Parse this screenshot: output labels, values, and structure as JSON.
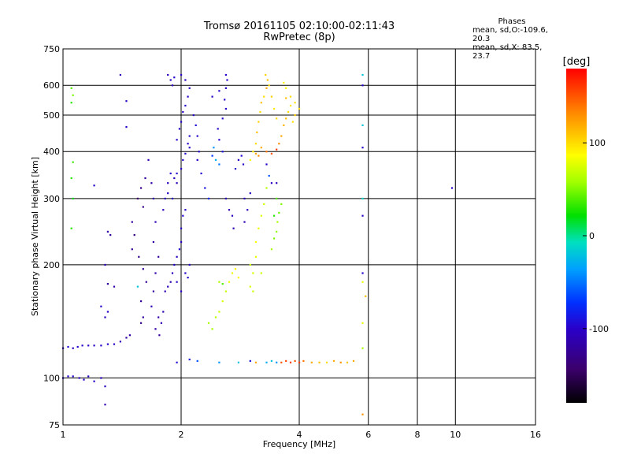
{
  "header": {
    "title_line1": "Tromsø 20161105 02:10:00-02:11:43",
    "title_line2": "RwPretec (8p)"
  },
  "stats": {
    "heading": "Phases",
    "line1": "mean, sd,O:-109.6, 20.3",
    "line2": "mean, sd,X:  83.5, 23.7"
  },
  "colorbar": {
    "unit_label": "[deg]",
    "ticks": [
      "100",
      "0",
      "-100"
    ],
    "tick_values": [
      100,
      0,
      -100
    ],
    "range": [
      -180,
      180
    ]
  },
  "chart_data": {
    "type": "scatter",
    "xlabel": "Frequency [MHz]",
    "ylabel": "Stationary phase Virtual Height [km]",
    "xscale": "log",
    "yscale": "log",
    "xlim": [
      1,
      16
    ],
    "ylim": [
      75,
      750
    ],
    "xticks": [
      1,
      2,
      4,
      6,
      8,
      10,
      16
    ],
    "yticks": [
      75,
      100,
      200,
      300,
      400,
      500,
      600,
      750
    ],
    "grid": true,
    "color_by": "phase_deg",
    "points": [
      [
        1.0,
        120,
        -100
      ],
      [
        1.03,
        121,
        -95
      ],
      [
        1.06,
        120,
        -105
      ],
      [
        1.09,
        121,
        -100
      ],
      [
        1.12,
        122,
        -98
      ],
      [
        1.16,
        122,
        -100
      ],
      [
        1.2,
        122,
        -102
      ],
      [
        1.25,
        122,
        -100
      ],
      [
        1.3,
        123,
        -98
      ],
      [
        1.35,
        123,
        -100
      ],
      [
        1.4,
        125,
        -110
      ],
      [
        1.45,
        128,
        -115
      ],
      [
        1.48,
        130,
        -115
      ],
      [
        1.0,
        100,
        -100
      ],
      [
        1.03,
        101,
        -98
      ],
      [
        1.06,
        101,
        -100
      ],
      [
        1.1,
        100,
        -102
      ],
      [
        1.13,
        99,
        -100
      ],
      [
        1.16,
        101,
        -100
      ],
      [
        1.2,
        98,
        -100
      ],
      [
        1.25,
        100,
        -104
      ],
      [
        1.28,
        95,
        -105
      ],
      [
        1.28,
        85,
        -110
      ],
      [
        1.05,
        590,
        40
      ],
      [
        1.06,
        565,
        50
      ],
      [
        1.05,
        540,
        30
      ],
      [
        1.06,
        375,
        35
      ],
      [
        1.05,
        340,
        30
      ],
      [
        1.06,
        300,
        20
      ],
      [
        1.05,
        250,
        30
      ],
      [
        1.2,
        325,
        -100
      ],
      [
        1.3,
        245,
        -115
      ],
      [
        1.32,
        240,
        -120
      ],
      [
        1.28,
        200,
        -110
      ],
      [
        1.3,
        178,
        -120
      ],
      [
        1.35,
        175,
        -115
      ],
      [
        1.25,
        155,
        -100
      ],
      [
        1.28,
        145,
        -105
      ],
      [
        1.3,
        150,
        -100
      ],
      [
        1.4,
        640,
        -110
      ],
      [
        1.45,
        545,
        -100
      ],
      [
        1.45,
        465,
        -100
      ],
      [
        1.5,
        260,
        -120
      ],
      [
        1.52,
        240,
        -130
      ],
      [
        1.5,
        220,
        -125
      ],
      [
        1.55,
        300,
        -140
      ],
      [
        1.58,
        320,
        -130
      ],
      [
        1.6,
        285,
        -130
      ],
      [
        1.62,
        340,
        -120
      ],
      [
        1.56,
        210,
        -130
      ],
      [
        1.6,
        195,
        -125
      ],
      [
        1.63,
        180,
        -120
      ],
      [
        1.58,
        160,
        -125
      ],
      [
        1.55,
        175,
        -20
      ],
      [
        1.6,
        145,
        -120
      ],
      [
        1.58,
        140,
        -130
      ],
      [
        1.65,
        380,
        -110
      ],
      [
        1.68,
        330,
        -115
      ],
      [
        1.7,
        300,
        -110
      ],
      [
        1.72,
        260,
        -110
      ],
      [
        1.7,
        230,
        -115
      ],
      [
        1.75,
        210,
        -120
      ],
      [
        1.72,
        190,
        -115
      ],
      [
        1.7,
        170,
        -120
      ],
      [
        1.68,
        155,
        -110
      ],
      [
        1.75,
        145,
        -115
      ],
      [
        1.78,
        140,
        -110
      ],
      [
        1.8,
        150,
        -110
      ],
      [
        1.72,
        135,
        -115
      ],
      [
        1.76,
        130,
        -120
      ],
      [
        1.8,
        280,
        -105
      ],
      [
        1.82,
        300,
        -100
      ],
      [
        1.85,
        310,
        -100
      ],
      [
        1.85,
        330,
        -105
      ],
      [
        1.9,
        300,
        -100
      ],
      [
        1.92,
        340,
        -105
      ],
      [
        1.88,
        350,
        -100
      ],
      [
        1.95,
        350,
        -100
      ],
      [
        1.95,
        330,
        -105
      ],
      [
        2.0,
        360,
        -100
      ],
      [
        2.02,
        380,
        -100
      ],
      [
        2.05,
        395,
        -100
      ],
      [
        2.08,
        420,
        -100
      ],
      [
        2.1,
        440,
        -95
      ],
      [
        2.1,
        410,
        -100
      ],
      [
        1.82,
        170,
        -110
      ],
      [
        1.85,
        175,
        -105
      ],
      [
        1.88,
        180,
        -110
      ],
      [
        1.9,
        190,
        -105
      ],
      [
        1.92,
        200,
        -100
      ],
      [
        1.95,
        210,
        -105
      ],
      [
        1.98,
        220,
        -100
      ],
      [
        2.0,
        230,
        -105
      ],
      [
        2.0,
        250,
        -100
      ],
      [
        2.02,
        270,
        -100
      ],
      [
        2.05,
        280,
        -100
      ],
      [
        1.95,
        180,
        -100
      ],
      [
        2.0,
        170,
        -100
      ],
      [
        2.05,
        190,
        -100
      ],
      [
        2.1,
        200,
        -100
      ],
      [
        2.08,
        185,
        -100
      ],
      [
        1.85,
        640,
        -105
      ],
      [
        1.88,
        620,
        -100
      ],
      [
        1.9,
        600,
        -105
      ],
      [
        1.92,
        630,
        -100
      ],
      [
        2.0,
        640,
        -100
      ],
      [
        2.05,
        620,
        -105
      ],
      [
        1.95,
        430,
        -100
      ],
      [
        1.98,
        460,
        -100
      ],
      [
        2.0,
        480,
        -100
      ],
      [
        2.02,
        510,
        -105
      ],
      [
        2.05,
        530,
        -100
      ],
      [
        2.08,
        560,
        -100
      ],
      [
        2.1,
        590,
        -100
      ],
      [
        2.15,
        500,
        -100
      ],
      [
        2.18,
        470,
        -95
      ],
      [
        2.2,
        440,
        -100
      ],
      [
        2.22,
        400,
        -100
      ],
      [
        2.2,
        380,
        -100
      ],
      [
        2.25,
        350,
        -100
      ],
      [
        2.3,
        320,
        -90
      ],
      [
        2.35,
        300,
        -80
      ],
      [
        2.4,
        390,
        -70
      ],
      [
        2.42,
        410,
        -40
      ],
      [
        2.45,
        380,
        -30
      ],
      [
        2.5,
        370,
        -50
      ],
      [
        2.55,
        400,
        -90
      ],
      [
        2.5,
        430,
        -100
      ],
      [
        2.48,
        460,
        -100
      ],
      [
        2.55,
        490,
        -100
      ],
      [
        2.6,
        520,
        -100
      ],
      [
        2.58,
        550,
        -100
      ],
      [
        2.6,
        590,
        -100
      ],
      [
        2.62,
        620,
        -100
      ],
      [
        2.6,
        640,
        -100
      ],
      [
        2.5,
        580,
        -100
      ],
      [
        2.4,
        560,
        -100
      ],
      [
        2.6,
        300,
        -110
      ],
      [
        2.65,
        280,
        -110
      ],
      [
        2.7,
        270,
        -105
      ],
      [
        2.72,
        250,
        -110
      ],
      [
        2.75,
        360,
        -100
      ],
      [
        2.8,
        380,
        -100
      ],
      [
        2.85,
        390,
        -95
      ],
      [
        2.88,
        370,
        -100
      ],
      [
        2.9,
        300,
        -105
      ],
      [
        2.95,
        280,
        -110
      ],
      [
        3.0,
        310,
        -100
      ],
      [
        2.9,
        260,
        -110
      ],
      [
        2.35,
        140,
        60
      ],
      [
        2.4,
        135,
        60
      ],
      [
        2.45,
        145,
        65
      ],
      [
        2.5,
        150,
        70
      ],
      [
        2.55,
        160,
        75
      ],
      [
        2.6,
        170,
        70
      ],
      [
        2.65,
        180,
        80
      ],
      [
        2.7,
        190,
        80
      ],
      [
        2.75,
        195,
        90
      ],
      [
        2.8,
        185,
        85
      ],
      [
        2.5,
        180,
        60
      ],
      [
        2.55,
        178,
        40
      ],
      [
        3.0,
        200,
        70
      ],
      [
        3.05,
        190,
        75
      ],
      [
        3.1,
        210,
        80
      ],
      [
        3.1,
        230,
        85
      ],
      [
        3.15,
        250,
        80
      ],
      [
        3.2,
        270,
        75
      ],
      [
        3.25,
        290,
        70
      ],
      [
        3.0,
        175,
        75
      ],
      [
        3.05,
        170,
        70
      ],
      [
        3.2,
        190,
        70
      ],
      [
        3.3,
        320,
        65
      ],
      [
        3.4,
        220,
        60
      ],
      [
        3.45,
        235,
        50
      ],
      [
        3.5,
        245,
        55
      ],
      [
        3.52,
        260,
        60
      ],
      [
        3.55,
        275,
        45
      ],
      [
        3.6,
        290,
        50
      ],
      [
        3.45,
        270,
        30
      ],
      [
        3.5,
        300,
        40
      ],
      [
        3.0,
        380,
        85
      ],
      [
        3.05,
        400,
        90
      ],
      [
        3.1,
        420,
        100
      ],
      [
        3.12,
        450,
        110
      ],
      [
        3.15,
        480,
        105
      ],
      [
        3.18,
        510,
        100
      ],
      [
        3.2,
        540,
        110
      ],
      [
        3.25,
        560,
        100
      ],
      [
        3.3,
        590,
        120
      ],
      [
        3.32,
        620,
        110
      ],
      [
        3.28,
        640,
        105
      ],
      [
        3.35,
        600,
        100
      ],
      [
        3.4,
        560,
        105
      ],
      [
        3.45,
        520,
        95
      ],
      [
        3.5,
        490,
        100
      ],
      [
        3.1,
        395,
        120
      ],
      [
        3.15,
        390,
        130
      ],
      [
        3.2,
        410,
        120
      ],
      [
        3.3,
        400,
        140
      ],
      [
        3.4,
        395,
        150
      ],
      [
        3.5,
        405,
        160
      ],
      [
        3.55,
        420,
        130
      ],
      [
        3.6,
        440,
        120
      ],
      [
        3.65,
        470,
        115
      ],
      [
        3.7,
        490,
        110
      ],
      [
        3.75,
        510,
        100
      ],
      [
        3.8,
        530,
        95
      ],
      [
        3.7,
        555,
        110
      ],
      [
        3.8,
        560,
        100
      ],
      [
        3.9,
        540,
        95
      ],
      [
        4.0,
        520,
        100
      ],
      [
        3.9,
        500,
        105
      ],
      [
        3.85,
        480,
        100
      ],
      [
        3.65,
        610,
        90
      ],
      [
        3.7,
        590,
        85
      ],
      [
        3.3,
        370,
        -100
      ],
      [
        3.35,
        345,
        -60
      ],
      [
        3.4,
        330,
        -100
      ],
      [
        3.5,
        330,
        -105
      ],
      [
        1.95,
        110,
        -95
      ],
      [
        2.1,
        112,
        -90
      ],
      [
        2.2,
        111,
        -60
      ],
      [
        2.5,
        110,
        -40
      ],
      [
        2.8,
        110,
        -20
      ],
      [
        3.0,
        111,
        -90
      ],
      [
        3.1,
        110,
        120
      ],
      [
        3.3,
        110,
        -30
      ],
      [
        3.4,
        111,
        -20
      ],
      [
        3.5,
        110,
        -40
      ],
      [
        3.6,
        110,
        150
      ],
      [
        3.7,
        111,
        155
      ],
      [
        3.8,
        110,
        160
      ],
      [
        3.9,
        111,
        150
      ],
      [
        4.0,
        110,
        160
      ],
      [
        4.1,
        111,
        140
      ],
      [
        4.3,
        110,
        120
      ],
      [
        4.5,
        110,
        110
      ],
      [
        4.7,
        110,
        100
      ],
      [
        4.9,
        111,
        120
      ],
      [
        5.1,
        110,
        130
      ],
      [
        5.3,
        110,
        110
      ],
      [
        5.5,
        111,
        120
      ],
      [
        5.8,
        640,
        -20
      ],
      [
        5.8,
        600,
        -100
      ],
      [
        5.8,
        470,
        -20
      ],
      [
        5.8,
        410,
        -100
      ],
      [
        5.8,
        300,
        -10
      ],
      [
        5.8,
        270,
        -100
      ],
      [
        5.8,
        190,
        -100
      ],
      [
        5.8,
        180,
        80
      ],
      [
        5.9,
        165,
        110
      ],
      [
        5.8,
        140,
        80
      ],
      [
        5.8,
        120,
        60
      ],
      [
        5.8,
        80,
        130
      ],
      [
        9.8,
        320,
        -100
      ]
    ]
  }
}
